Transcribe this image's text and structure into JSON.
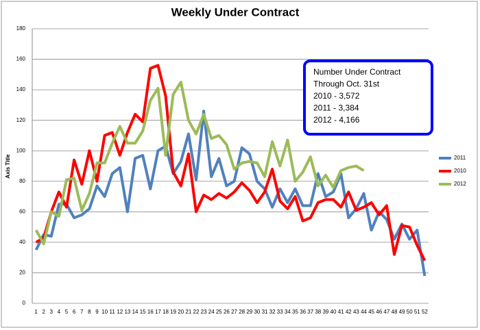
{
  "chart_data": {
    "type": "line",
    "title": "Weekly Under Contract",
    "y_label": "Axis Title",
    "categories": [
      "1",
      "2",
      "3",
      "4",
      "5",
      "6",
      "7",
      "8",
      "9",
      "10",
      "11",
      "12",
      "13",
      "14",
      "15",
      "16",
      "17",
      "18",
      "19",
      "20",
      "21",
      "22",
      "23",
      "24",
      "25",
      "26",
      "27",
      "28",
      "29",
      "30",
      "31",
      "32",
      "33",
      "34",
      "35",
      "36",
      "37",
      "38",
      "39",
      "40",
      "41",
      "42",
      "43",
      "44",
      "45",
      "46",
      "47",
      "48",
      "49",
      "50",
      "51",
      "52"
    ],
    "series": [
      {
        "name": "2011",
        "color": "#4f81bd",
        "values": [
          35,
          45,
          44,
          65,
          65,
          56,
          58,
          62,
          77,
          70,
          85,
          89,
          60,
          95,
          97,
          75,
          100,
          103,
          85,
          93,
          111,
          81,
          126,
          83,
          95,
          77,
          80,
          102,
          98,
          80,
          75,
          63,
          75,
          66,
          75,
          64,
          64,
          85,
          70,
          73,
          85,
          56,
          62,
          72,
          48,
          60,
          55,
          42,
          52,
          42,
          48,
          18
        ]
      },
      {
        "name": "2010",
        "color": "#ff0000",
        "values": [
          40,
          43,
          60,
          73,
          63,
          94,
          78,
          100,
          80,
          110,
          112,
          97,
          112,
          124,
          119,
          154,
          156,
          136,
          86,
          77,
          98,
          60,
          71,
          68,
          72,
          69,
          73,
          79,
          74,
          66,
          73,
          88,
          67,
          62,
          70,
          54,
          56,
          66,
          68,
          68,
          63,
          73,
          61,
          63,
          66,
          58,
          64,
          32,
          51,
          50,
          38,
          28
        ]
      },
      {
        "name": "2012",
        "color": "#9bbb59",
        "values": [
          48,
          39,
          60,
          57,
          81,
          82,
          61,
          72,
          92,
          92,
          105,
          116,
          105,
          105,
          113,
          133,
          141,
          97,
          137,
          145,
          120,
          111,
          124,
          108,
          110,
          104,
          88,
          92,
          93,
          92,
          83,
          106,
          90,
          107,
          80,
          86,
          96,
          77,
          84,
          76,
          87,
          89,
          90,
          87,
          null,
          null,
          null,
          null,
          null,
          null,
          null,
          null
        ]
      }
    ],
    "ylim": [
      0,
      180
    ],
    "yticks": [
      0,
      20,
      40,
      60,
      80,
      100,
      120,
      140,
      160,
      180
    ],
    "grid": true,
    "legend": "right",
    "annotations": [
      "Number Under Contract",
      "Through Oct. 31st",
      "2010 - 3,572",
      "2011 - 3,384",
      "2012 - 4,166"
    ]
  }
}
